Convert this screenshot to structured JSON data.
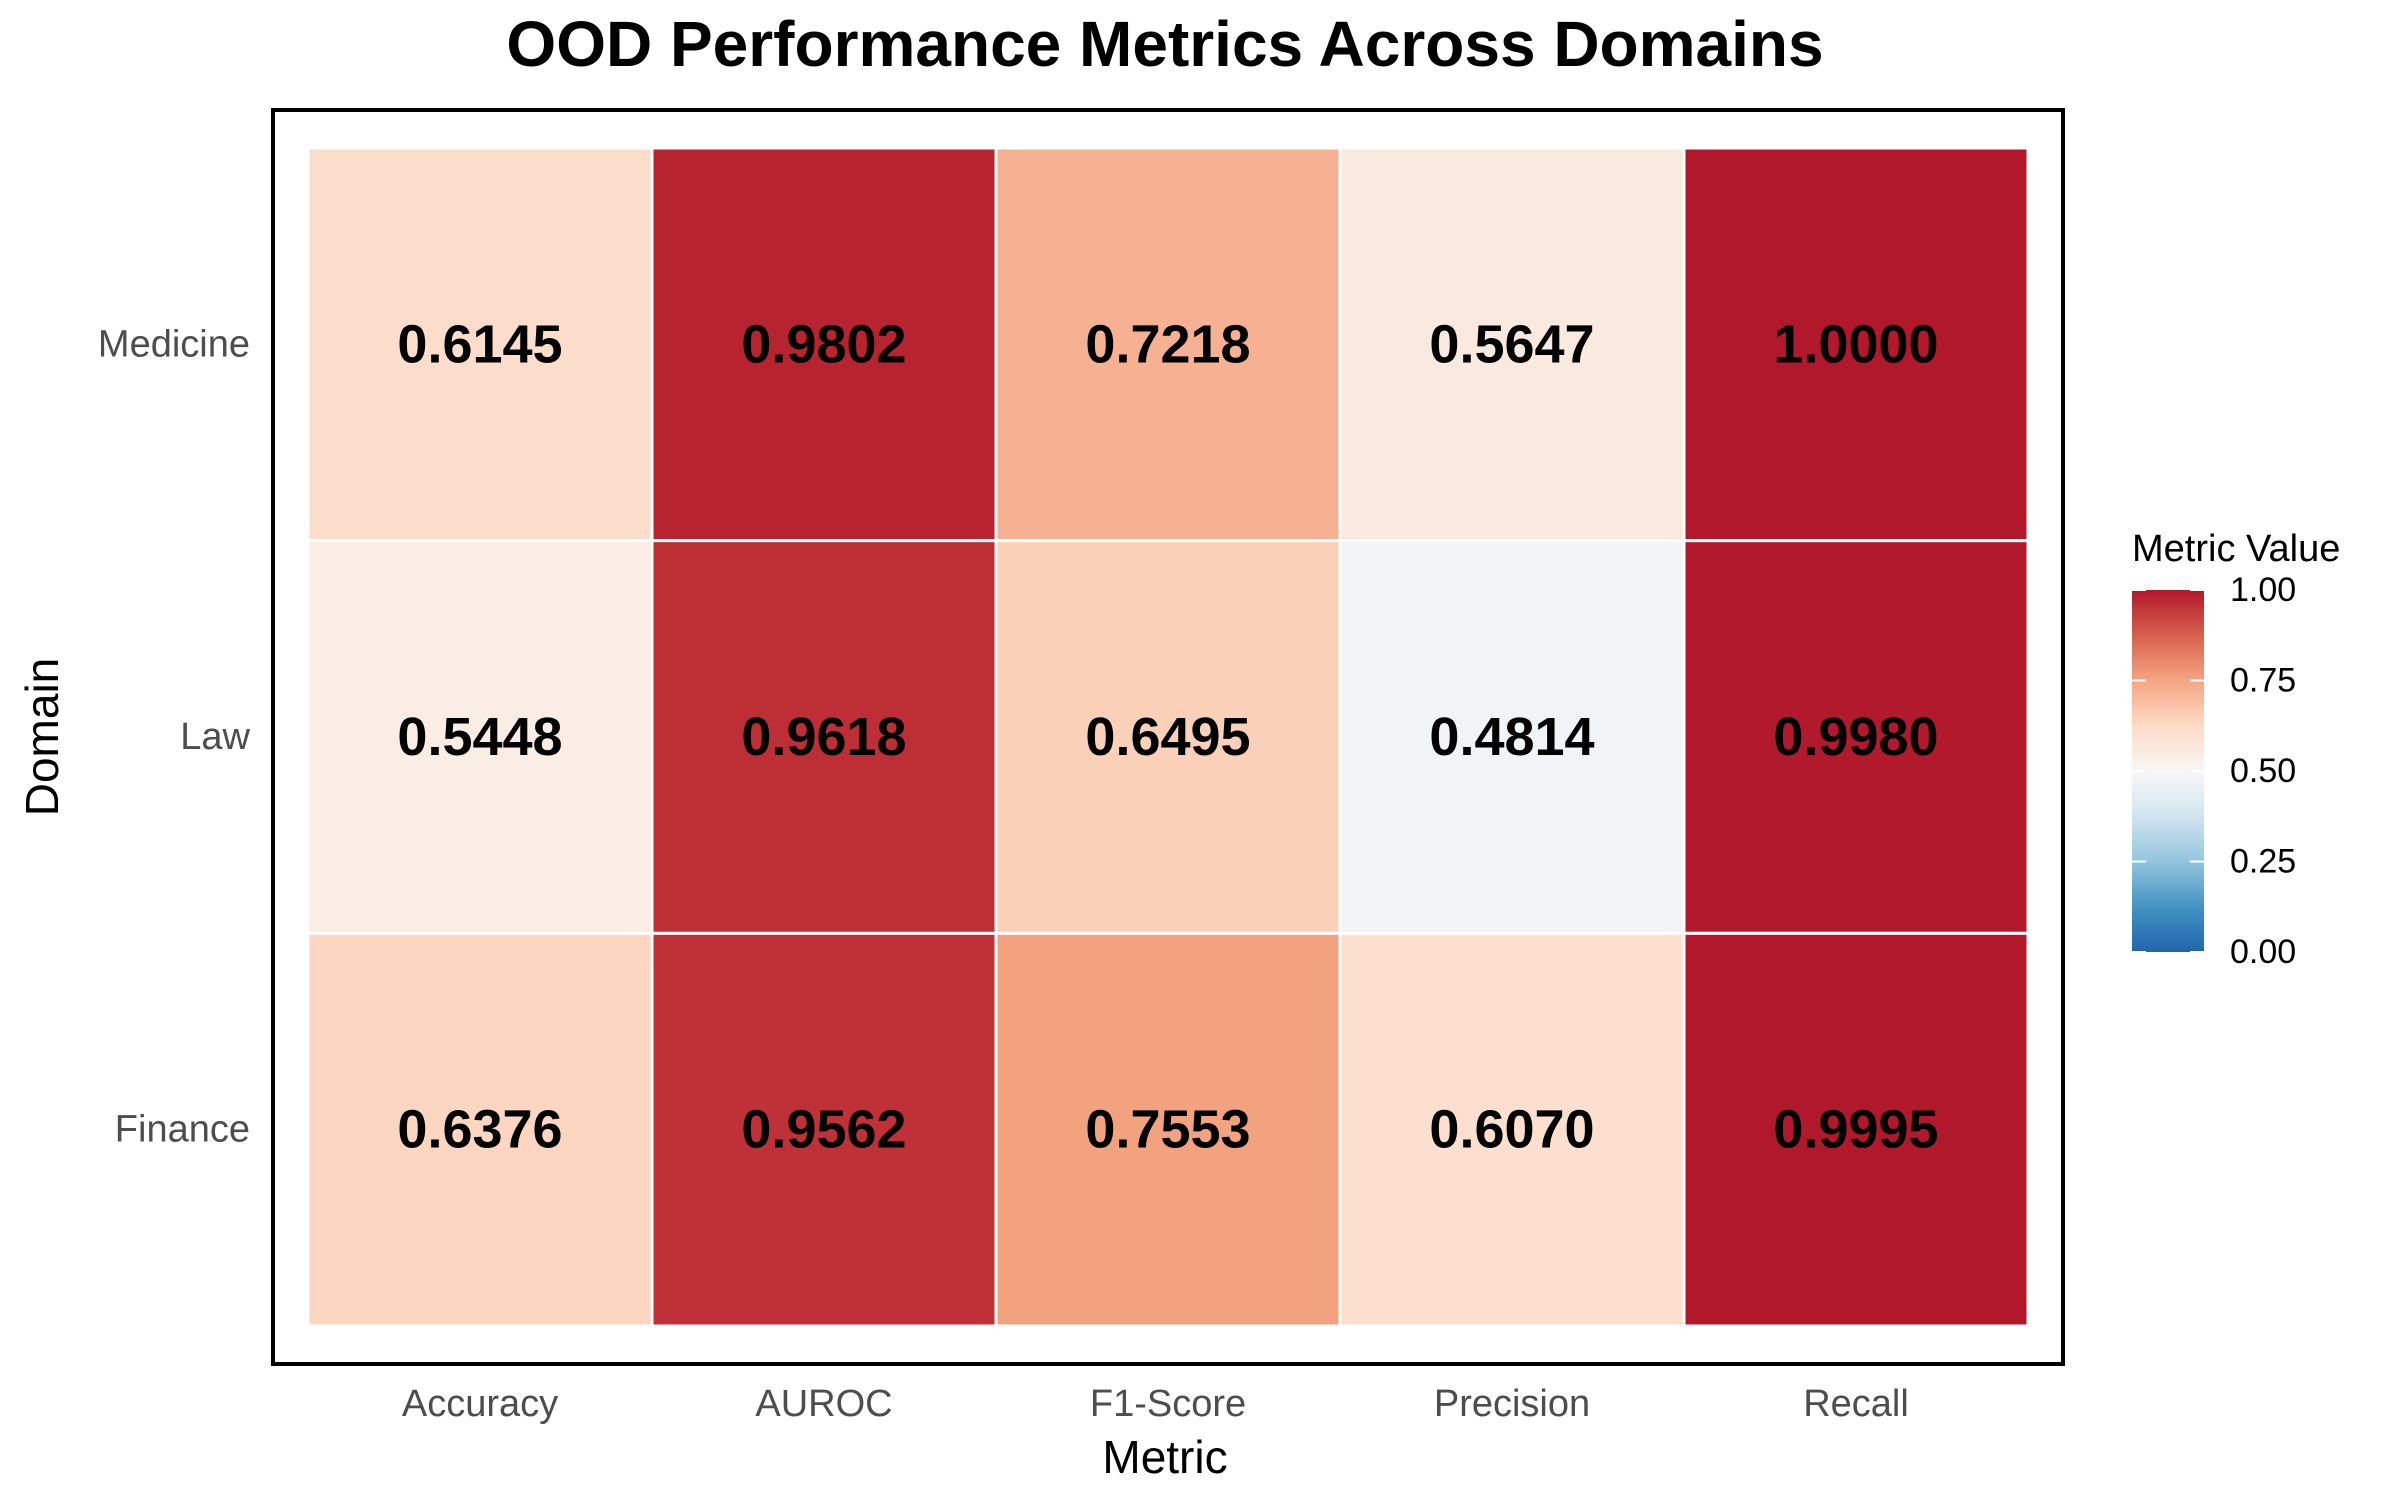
{
  "chart_data": {
    "type": "heatmap",
    "title": "OOD Performance Metrics Across Domains",
    "xlabel": "Metric",
    "ylabel": "Domain",
    "x_categories": [
      "Accuracy",
      "AUROC",
      "F1-Score",
      "Precision",
      "Recall"
    ],
    "y_categories": [
      "Medicine",
      "Law",
      "Finance"
    ],
    "values": [
      [
        0.6145,
        0.9802,
        0.7218,
        0.5647,
        1.0
      ],
      [
        0.5448,
        0.9618,
        0.6495,
        0.4814,
        0.998
      ],
      [
        0.6376,
        0.9562,
        0.7553,
        0.607,
        0.9995
      ]
    ],
    "value_labels": [
      [
        "0.6145",
        "0.9802",
        "0.7218",
        "0.5647",
        "1.0000"
      ],
      [
        "0.5448",
        "0.9618",
        "0.6495",
        "0.4814",
        "0.9980"
      ],
      [
        "0.6376",
        "0.9562",
        "0.7553",
        "0.6070",
        "0.9995"
      ]
    ],
    "color_scale": {
      "name": "RdBu (reversed)",
      "range": [
        0,
        1
      ],
      "low_color": "#2166AC",
      "mid_color": "#F7F7F7",
      "high_color": "#B2182B"
    },
    "legend": {
      "title": "Metric Value",
      "position": "right",
      "ticks": [
        0.0,
        0.25,
        0.5,
        0.75,
        1.0
      ],
      "tick_labels": [
        "0.00",
        "0.25",
        "0.50",
        "0.75",
        "1.00"
      ]
    },
    "grid": false
  }
}
